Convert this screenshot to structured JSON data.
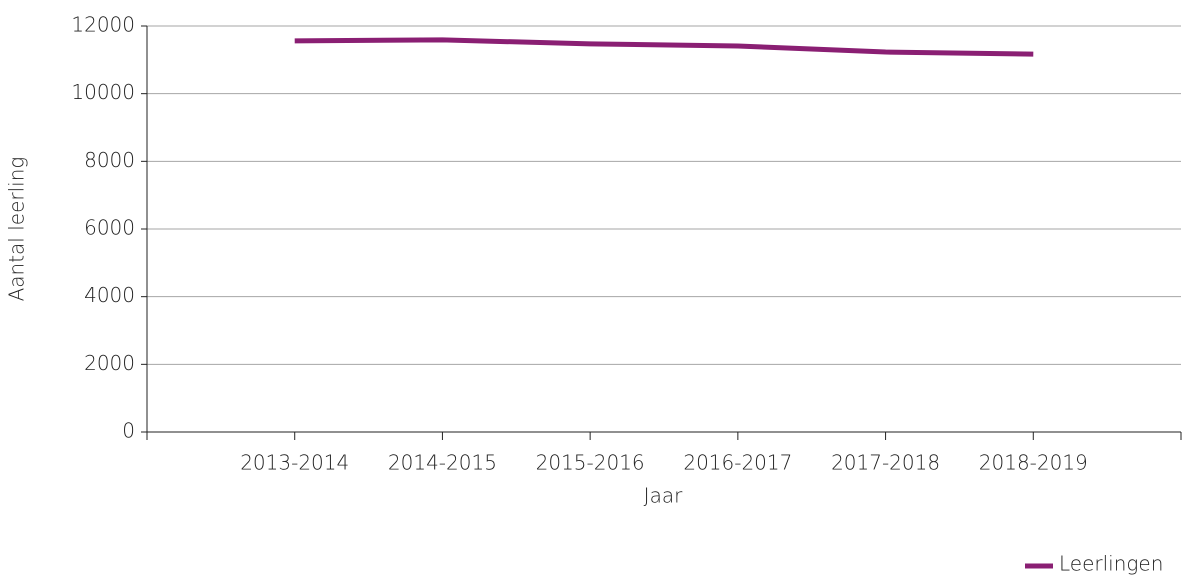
{
  "chart_data": {
    "type": "line",
    "x_label": "Jaar",
    "y_label": "Aantal leerling",
    "categories": [
      "2013-2014",
      "2014-2015",
      "2015-2016",
      "2016-2017",
      "2017-2018",
      "2018-2019"
    ],
    "series": [
      {
        "name": "Leerlingen",
        "color": "#8a1f73",
        "values": [
          11560,
          11590,
          11470,
          11410,
          11230,
          11170
        ]
      }
    ],
    "ylim": [
      0,
      12000
    ],
    "yticks": [
      0,
      2000,
      4000,
      6000,
      8000,
      10000,
      12000
    ],
    "grid": true,
    "legend": "bottom-right"
  }
}
